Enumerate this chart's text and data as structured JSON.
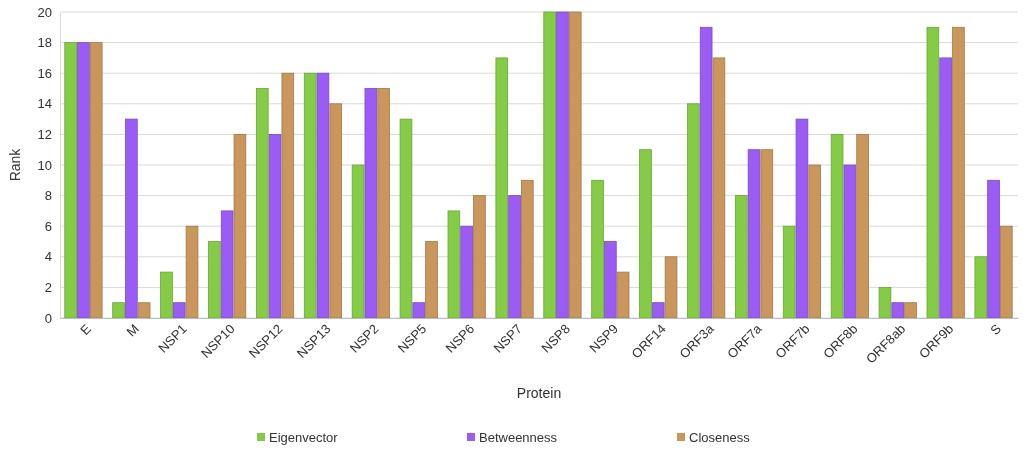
{
  "chart_data": {
    "type": "bar",
    "xlabel": "Protein",
    "ylabel": "Rank",
    "categories": [
      "E",
      "M",
      "NSP1",
      "NSP10",
      "NSP12",
      "NSP13",
      "NSP2",
      "NSP5",
      "NSP6",
      "NSP7",
      "NSP8",
      "NSP9",
      "ORF14",
      "ORF3a",
      "ORF7a",
      "ORF7b",
      "ORF8b",
      "ORF8ab",
      "ORF9b",
      "S"
    ],
    "series": [
      {
        "name": "Eigenvector",
        "color": "#84cc45",
        "values": [
          18,
          1,
          3,
          5,
          15,
          16,
          10,
          13,
          7,
          17,
          20,
          9,
          11,
          14,
          8,
          6,
          12,
          2,
          19,
          4
        ]
      },
      {
        "name": "Betweenness",
        "color": "#9a5cf5",
        "values": [
          18,
          13,
          1,
          7,
          12,
          16,
          15,
          1,
          6,
          8,
          20,
          5,
          1,
          19,
          11,
          13,
          10,
          1,
          17,
          9
        ]
      },
      {
        "name": "Closeness",
        "color": "#c9965c",
        "values": [
          18,
          1,
          6,
          12,
          16,
          14,
          15,
          5,
          8,
          9,
          20,
          3,
          4,
          17,
          11,
          10,
          12,
          1,
          19,
          6
        ]
      }
    ],
    "ylim": [
      0,
      20
    ],
    "yticks": [
      0,
      2,
      4,
      6,
      8,
      10,
      12,
      14,
      16,
      18,
      20
    ],
    "grid": "y",
    "legend": "bottom"
  }
}
